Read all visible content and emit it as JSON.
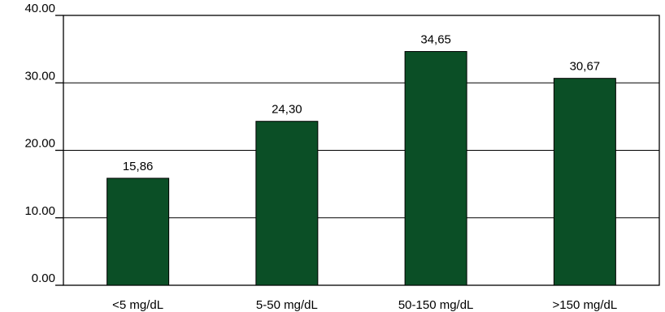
{
  "chart_data": {
    "type": "bar",
    "categories": [
      "<5 mg/dL",
      "5-50 mg/dL",
      "50-150 mg/dL",
      ">150 mg/dL"
    ],
    "values": [
      15.86,
      24.3,
      34.65,
      30.67
    ],
    "data_labels": [
      "15,86",
      "24,30",
      "34,65",
      "30,67"
    ],
    "y_ticks": [
      0,
      10,
      20,
      30,
      40
    ],
    "y_tick_labels": [
      "0.00",
      "10.00",
      "20.00",
      "30.00",
      "40.00"
    ],
    "ylim": [
      0,
      40
    ],
    "title": "",
    "xlabel": "",
    "ylabel": "",
    "grid": true,
    "legend": "none",
    "colors": {
      "bar_fill": "#0b4f26",
      "bar_stroke": "#000000",
      "grid": "#000000",
      "axis": "#000000"
    }
  }
}
